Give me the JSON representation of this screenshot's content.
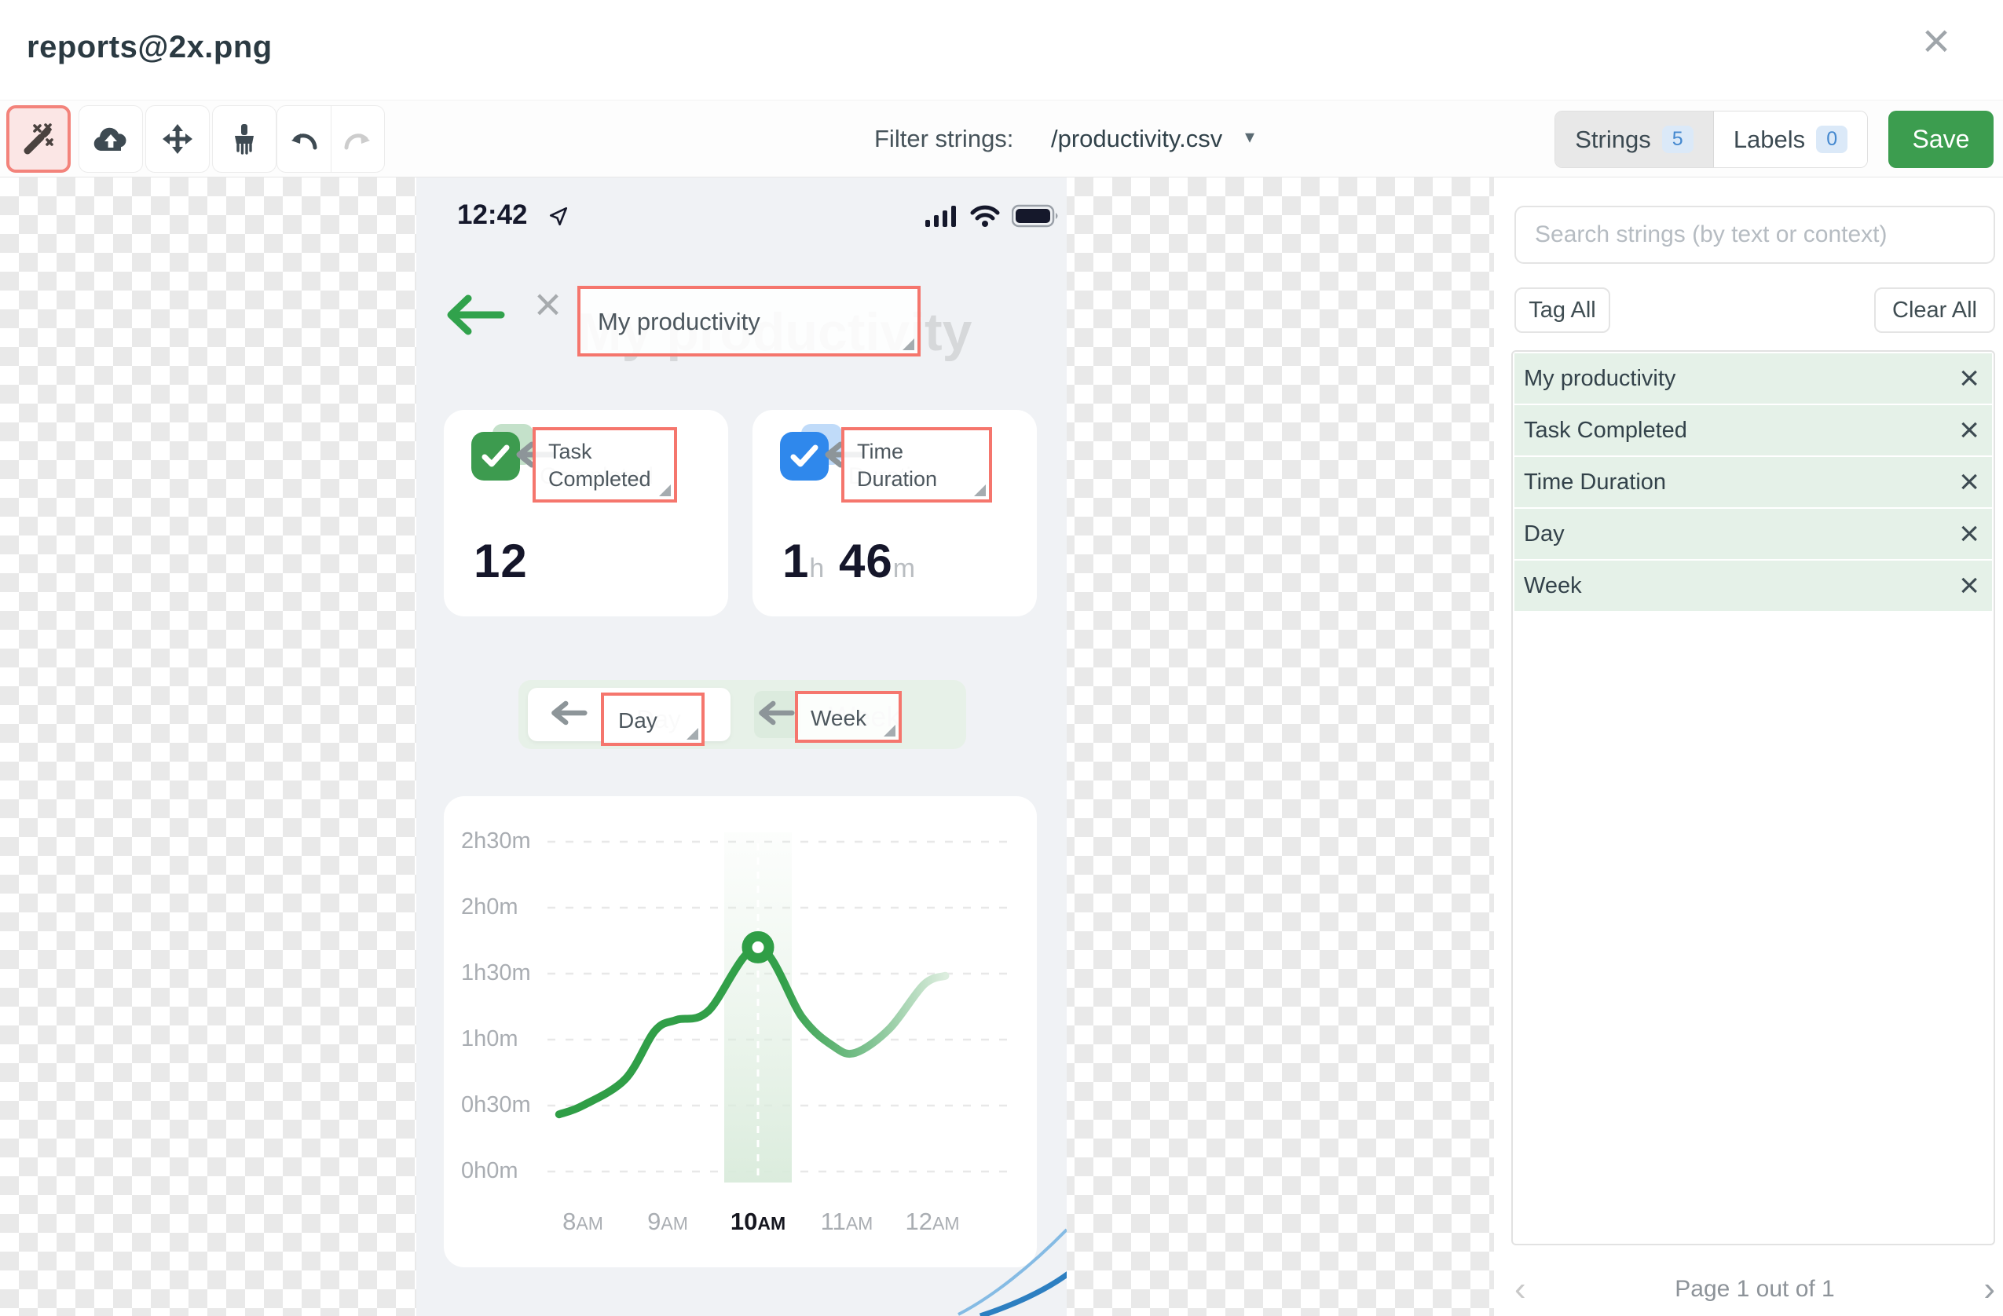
{
  "header": {
    "title": "reports@2x.png",
    "close_icon": "×"
  },
  "toolbar": {
    "buttons": [
      {
        "name": "magic-wand",
        "active": true
      },
      {
        "name": "cloud-upload"
      },
      {
        "name": "move"
      },
      {
        "name": "brush"
      },
      {
        "name": "undo"
      },
      {
        "name": "redo",
        "disabled": true
      }
    ],
    "filter_label": "Filter strings:",
    "filter_value": "/productivity.csv",
    "filter_caret": "▾",
    "strings_tab": "Strings",
    "strings_count": "5",
    "labels_tab": "Labels",
    "labels_count": "0",
    "save_label": "Save"
  },
  "phone": {
    "status_time": "12:42",
    "title_ghost": "My productivity",
    "title_annotation": "My productivity",
    "cards": [
      {
        "label": "Task Completed",
        "ghost": "Completed",
        "value": "12",
        "icon_color": "#3d9b4f"
      },
      {
        "label": "Time Duration",
        "ghost": "Duration",
        "value_h": "1",
        "unit_h": "h",
        "value_m": "46",
        "unit_m": "m",
        "icon_color": "#2f88ec"
      }
    ],
    "toggle": {
      "day": "Day",
      "day_ghost": "Day",
      "week": "Week",
      "week_ghost": "Week"
    }
  },
  "chart_data": {
    "type": "line",
    "title": "",
    "x_unit": "hour_of_day",
    "y_unit": "minutes",
    "points": [
      [
        7.72,
        26
      ],
      [
        8,
        30
      ],
      [
        8.5,
        42
      ],
      [
        8.85,
        64
      ],
      [
        9.1,
        69
      ],
      [
        9.45,
        73
      ],
      [
        10,
        102
      ],
      [
        10.5,
        70
      ],
      [
        10.85,
        57
      ],
      [
        11.1,
        54
      ],
      [
        11.5,
        65
      ],
      [
        11.9,
        85
      ],
      [
        12.15,
        89
      ]
    ],
    "highlight_point": {
      "x": 10,
      "y": 102
    },
    "x_tick_hours": [
      8,
      9,
      10,
      11,
      12
    ],
    "x_tick_labels": [
      "8AM",
      "9AM",
      "10AM",
      "11AM",
      "12AM"
    ],
    "active_x_tick": "10AM",
    "y_tick_labels": [
      "2h30m",
      "2h0m",
      "1h30m",
      "1h0m",
      "0h30m",
      "0h0m"
    ],
    "y_tick_minutes": [
      150,
      120,
      90,
      60,
      30,
      0
    ],
    "ylim": [
      0,
      150
    ],
    "line_color": "#2f9e46",
    "grid": "dashed-horizontal",
    "legend": "none"
  },
  "sidebar": {
    "search_placeholder": "Search strings (by text or context)",
    "tag_all": "Tag All",
    "clear_all": "Clear All",
    "strings": [
      "My productivity",
      "Task Completed",
      "Time Duration",
      "Day",
      "Week"
    ],
    "remove_icon": "×",
    "pagination": {
      "label": "Page 1 out of 1",
      "prev": "‹",
      "next": "›"
    }
  }
}
